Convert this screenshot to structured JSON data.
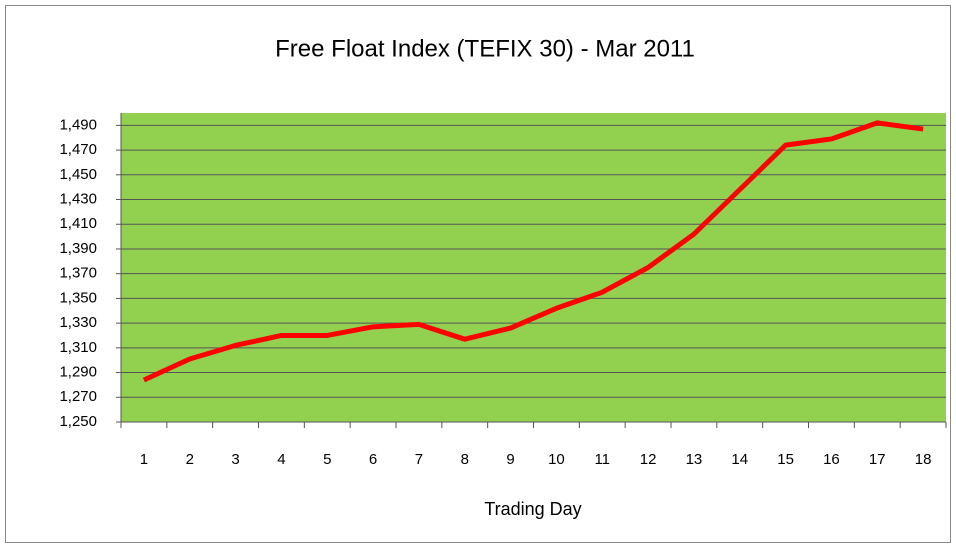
{
  "chart_data": {
    "type": "line",
    "title": "Free Float Index (TEFIX 30) - Mar 2011",
    "x_label": "Trading Day",
    "categories": [
      "1",
      "2",
      "3",
      "4",
      "5",
      "6",
      "7",
      "8",
      "9",
      "10",
      "11",
      "12",
      "13",
      "14",
      "15",
      "16",
      "17",
      "18"
    ],
    "series": [
      {
        "name": "TEFIX 30",
        "color": "#ff0000",
        "values": [
          1284,
          1301,
          1312,
          1320,
          1320,
          1327,
          1329,
          1317,
          1326,
          1342,
          1355,
          1375,
          1402,
          1438,
          1474,
          1479,
          1492,
          1487
        ]
      }
    ],
    "ylim": [
      1250,
      1500
    ],
    "yticks": [
      {
        "value": 1250,
        "label": "1,250"
      },
      {
        "value": 1270,
        "label": "1,270"
      },
      {
        "value": 1290,
        "label": "1,290"
      },
      {
        "value": 1310,
        "label": "1,310"
      },
      {
        "value": 1330,
        "label": "1,330"
      },
      {
        "value": 1350,
        "label": "1,350"
      },
      {
        "value": 1370,
        "label": "1,370"
      },
      {
        "value": 1390,
        "label": "1,390"
      },
      {
        "value": 1410,
        "label": "1,410"
      },
      {
        "value": 1430,
        "label": "1,430"
      },
      {
        "value": 1450,
        "label": "1,450"
      },
      {
        "value": 1470,
        "label": "1,470"
      },
      {
        "value": 1490,
        "label": "1,490"
      }
    ],
    "grid": true,
    "plot_background": "#92d050"
  }
}
